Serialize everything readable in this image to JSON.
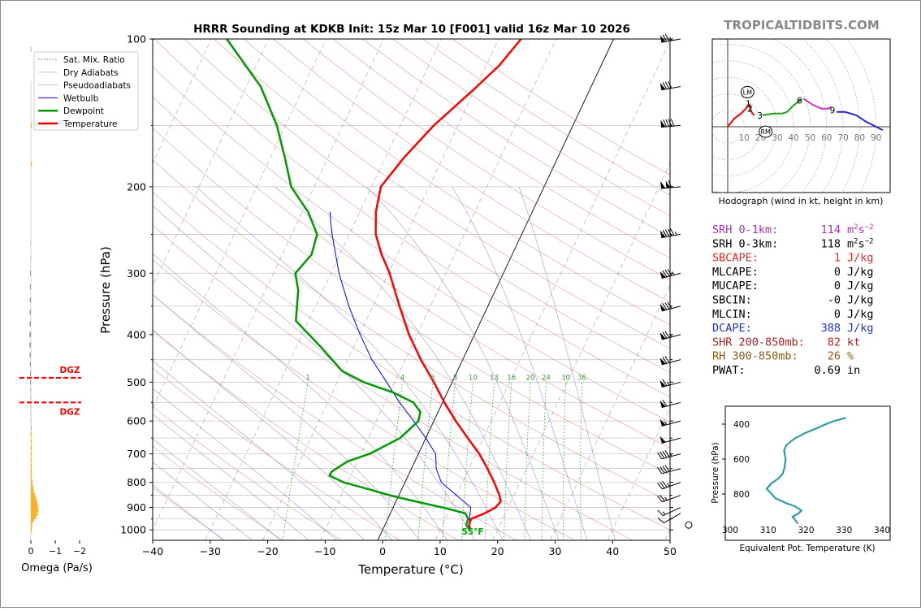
{
  "chart_data": [
    {
      "type": "skew-t",
      "title": "HRRR Sounding at KDKB Init: 15z Mar 10 [F001] valid 16z Mar 10 2026",
      "xlabel": "Temperature (°C)",
      "ylabel": "Pressure (hPa)",
      "xlim": [
        -40,
        50
      ],
      "ylim": [
        1050,
        100
      ],
      "log_y": true,
      "x_ticks": [
        "−40",
        "−30",
        "−20",
        "−10",
        "0",
        "10",
        "20",
        "30",
        "40",
        "50"
      ],
      "y_ticks": [
        "100",
        "200",
        "300",
        "400",
        "500",
        "600",
        "700",
        "800",
        "900",
        "1000"
      ],
      "legend": [
        "Sat. Mix. Ratio",
        "Dry Adiabats",
        "Pseudoadiabats",
        "Wetbulb",
        "Dewpoint",
        "Temperature"
      ],
      "legend_position": "top-left",
      "colors": {
        "temperature": "#ff0000",
        "dewpoint": "#009900",
        "wetbulb": "#0000ff",
        "dry": "#e08080",
        "moist": "#8080e0",
        "mix": "#2e9b2e"
      },
      "mixing_ratio_labels": [
        "1",
        "4",
        "6",
        "8",
        "10",
        "13",
        "16",
        "20",
        "24",
        "30",
        "36"
      ],
      "surface_label": "55°F",
      "temperature": [
        [
          1000,
          15.2
        ],
        [
          975,
          14.6
        ],
        [
          950,
          14.5
        ],
        [
          925,
          16.4
        ],
        [
          900,
          17.8
        ],
        [
          875,
          18.2
        ],
        [
          850,
          17.5
        ],
        [
          800,
          15.5
        ],
        [
          750,
          13.2
        ],
        [
          700,
          10.6
        ],
        [
          650,
          7.3
        ],
        [
          600,
          3.8
        ],
        [
          550,
          0.3
        ],
        [
          500,
          -3.2
        ],
        [
          450,
          -7.3
        ],
        [
          400,
          -11.4
        ],
        [
          350,
          -15.4
        ],
        [
          300,
          -19.8
        ],
        [
          275,
          -22.7
        ],
        [
          250,
          -25.4
        ],
        [
          225,
          -27.2
        ],
        [
          200,
          -28.4
        ],
        [
          175,
          -26.8
        ],
        [
          150,
          -24.2
        ],
        [
          125,
          -19.9
        ],
        [
          113,
          -17.7
        ],
        [
          100,
          -16.1
        ]
      ],
      "dewpoint": [
        [
          1000,
          15.1
        ],
        [
          975,
          14.1
        ],
        [
          950,
          14.0
        ],
        [
          925,
          13.0
        ],
        [
          900,
          8.6
        ],
        [
          875,
          3.4
        ],
        [
          850,
          -1.6
        ],
        [
          825,
          -6.0
        ],
        [
          800,
          -10.7
        ],
        [
          775,
          -13.7
        ],
        [
          760,
          -13.6
        ],
        [
          725,
          -11.7
        ],
        [
          700,
          -8.5
        ],
        [
          650,
          -4.5
        ],
        [
          600,
          -2.7
        ],
        [
          575,
          -3.1
        ],
        [
          550,
          -5.1
        ],
        [
          525,
          -9.4
        ],
        [
          500,
          -15.4
        ],
        [
          475,
          -20.0
        ],
        [
          425,
          -25.6
        ],
        [
          375,
          -32.2
        ],
        [
          325,
          -34.3
        ],
        [
          300,
          -36.2
        ],
        [
          275,
          -34.9
        ],
        [
          250,
          -35.6
        ],
        [
          225,
          -39.0
        ],
        [
          200,
          -44.0
        ],
        [
          175,
          -47.4
        ],
        [
          150,
          -51.5
        ],
        [
          125,
          -57.5
        ],
        [
          100,
          -67.3
        ]
      ],
      "wetbulb": [
        [
          1000,
          15.1
        ],
        [
          950,
          14.2
        ],
        [
          900,
          13.5
        ],
        [
          850,
          10.0
        ],
        [
          800,
          6.3
        ],
        [
          750,
          4.3
        ],
        [
          700,
          3.0
        ],
        [
          650,
          0.0
        ],
        [
          600,
          -3.5
        ],
        [
          550,
          -7.5
        ],
        [
          500,
          -11.4
        ],
        [
          450,
          -15.8
        ],
        [
          400,
          -19.9
        ],
        [
          350,
          -24.2
        ],
        [
          300,
          -28.6
        ],
        [
          250,
          -33.0
        ],
        [
          225,
          -35.2
        ]
      ],
      "wind_kt": [
        [
          1000,
          0,
          0
        ],
        [
          925,
          240,
          10
        ],
        [
          900,
          245,
          15
        ],
        [
          850,
          250,
          25
        ],
        [
          800,
          250,
          35
        ],
        [
          750,
          255,
          40
        ],
        [
          700,
          255,
          45
        ],
        [
          650,
          255,
          50
        ],
        [
          600,
          255,
          55
        ],
        [
          550,
          255,
          60
        ],
        [
          500,
          255,
          65
        ],
        [
          450,
          255,
          70
        ],
        [
          400,
          255,
          75
        ],
        [
          350,
          255,
          80
        ],
        [
          300,
          255,
          85
        ],
        [
          250,
          260,
          95
        ],
        [
          200,
          265,
          110
        ],
        [
          150,
          265,
          90
        ],
        [
          125,
          260,
          80
        ],
        [
          100,
          260,
          75
        ]
      ]
    },
    {
      "type": "omega-profile",
      "xlabel": "Omega (Pa/s)",
      "x_ticks": [
        "0",
        "−1",
        "−2"
      ],
      "dgz_label": "DGZ",
      "dgz_hpa": [
        550,
        490
      ],
      "omega": [
        [
          1000,
          -0.05
        ],
        [
          980,
          -0.1
        ],
        [
          960,
          -0.15
        ],
        [
          950,
          -0.3
        ],
        [
          940,
          -0.45
        ],
        [
          925,
          -0.6
        ],
        [
          910,
          -0.65
        ],
        [
          895,
          -0.6
        ],
        [
          880,
          -0.55
        ],
        [
          865,
          -0.45
        ],
        [
          850,
          -0.35
        ],
        [
          835,
          -0.25
        ],
        [
          820,
          -0.2
        ],
        [
          800,
          -0.15
        ],
        [
          780,
          -0.1
        ],
        [
          760,
          -0.07
        ],
        [
          740,
          -0.05
        ],
        [
          720,
          -0.04
        ],
        [
          700,
          -0.03
        ],
        [
          680,
          -0.03
        ],
        [
          660,
          -0.02
        ],
        [
          640,
          -0.01
        ],
        [
          620,
          0
        ],
        [
          600,
          0.02
        ],
        [
          580,
          0.04
        ],
        [
          560,
          0.05
        ],
        [
          540,
          0.05
        ],
        [
          520,
          0.06
        ],
        [
          500,
          0.07
        ],
        [
          480,
          0.07
        ],
        [
          460,
          0.08
        ],
        [
          440,
          0.1
        ],
        [
          420,
          0.12
        ],
        [
          400,
          0.12
        ],
        [
          380,
          0.1
        ],
        [
          360,
          0.1
        ],
        [
          340,
          0.09
        ],
        [
          320,
          0.08
        ],
        [
          300,
          0.07
        ],
        [
          280,
          0.05
        ],
        [
          260,
          0.05
        ],
        [
          180,
          -0.02
        ],
        [
          150,
          -0.02
        ],
        [
          105,
          0.02
        ]
      ]
    },
    {
      "type": "hodograph",
      "caption": "Hodograph (wind in kt, height in km)",
      "rings_kt": [
        "10",
        "20",
        "30",
        "40",
        "50",
        "60",
        "70",
        "80",
        "90"
      ],
      "markers": [
        "LM",
        "RM"
      ],
      "height_labels": [
        "1",
        "2",
        "3",
        "6",
        "9"
      ],
      "segments": [
        {
          "name": "0-1 km",
          "color": "#ff0000",
          "points": [
            [
              0,
              0
            ],
            [
              4,
              5
            ],
            [
              8,
              8
            ],
            [
              11,
              11
            ],
            [
              13,
              14
            ]
          ]
        },
        {
          "name": "1-3 km",
          "color": "#ff0000",
          "points": [
            [
              13,
              14
            ],
            [
              14,
              10
            ],
            [
              15,
              8
            ],
            [
              16,
              7
            ]
          ]
        },
        {
          "name": "3-6 km",
          "color": "#1a9e1a",
          "points": [
            [
              21,
              7
            ],
            [
              28,
              8
            ],
            [
              33,
              8
            ],
            [
              36,
              9
            ],
            [
              40,
              13
            ],
            [
              44,
              16
            ],
            [
              45,
              17
            ]
          ]
        },
        {
          "name": "6-9 km",
          "color": "#cc33cc",
          "points": [
            [
              46,
              17
            ],
            [
              52,
              13
            ],
            [
              57,
              11
            ],
            [
              61,
              11
            ],
            [
              63,
              12
            ]
          ]
        },
        {
          "name": "9-12 km",
          "color": "#2222dd",
          "points": [
            [
              66,
              9
            ],
            [
              68,
              9
            ],
            [
              71,
              9
            ],
            [
              78,
              7
            ],
            [
              84,
              3
            ],
            [
              90,
              0
            ],
            [
              94,
              -2
            ]
          ]
        }
      ],
      "lm": [
        12,
        21
      ],
      "rm": [
        23,
        -3
      ]
    },
    {
      "type": "line",
      "xlabel": "Equivalent Pot. Temperature (K)",
      "ylabel": "Pressure (hPa)",
      "xlim": [
        300,
        340
      ],
      "ylim": [
        1000,
        360
      ],
      "x_ticks": [
        "300",
        "310",
        "320",
        "330",
        "340"
      ],
      "y_ticks": [
        "400",
        "600",
        "800",
        "1000"
      ],
      "color": "#3399aa",
      "points": [
        [
          317.8,
          970
        ],
        [
          317.0,
          945
        ],
        [
          316.4,
          930
        ],
        [
          317.8,
          915
        ],
        [
          318.8,
          895
        ],
        [
          317.0,
          870
        ],
        [
          314.5,
          850
        ],
        [
          312.0,
          825
        ],
        [
          309.6,
          770
        ],
        [
          310.8,
          740
        ],
        [
          312.8,
          710
        ],
        [
          313.8,
          685
        ],
        [
          314.3,
          650
        ],
        [
          314.6,
          600
        ],
        [
          314.2,
          550
        ],
        [
          314.8,
          520
        ],
        [
          316.8,
          485
        ],
        [
          319.8,
          450
        ],
        [
          323.2,
          420
        ],
        [
          325.8,
          395
        ],
        [
          327.7,
          380
        ],
        [
          330.5,
          364
        ]
      ]
    }
  ],
  "brand": "TROPICALTIDBITS.COM",
  "stats": [
    {
      "label": "SRH 0-1km:",
      "value": "114",
      "unit": "m",
      "color": "#aa33aa"
    },
    {
      "label": "SRH 0-3km:",
      "value": "118",
      "unit": "m",
      "color": "#000000"
    },
    {
      "label": "SBCAPE:",
      "value": "1",
      "unit": "J/kg",
      "color": "#ee2222"
    },
    {
      "label": "MLCAPE:",
      "value": "0",
      "unit": "J/kg",
      "color": "#000000"
    },
    {
      "label": "MUCAPE:",
      "value": "0",
      "unit": "J/kg",
      "color": "#000000"
    },
    {
      "label": "SBCIN:",
      "value": "-0",
      "unit": "J/kg",
      "color": "#000000"
    },
    {
      "label": "MLCIN:",
      "value": "0",
      "unit": "J/kg",
      "color": "#000000"
    },
    {
      "label": "DCAPE:",
      "value": "388",
      "unit": "J/kg",
      "color": "#2233cc"
    },
    {
      "label": "SHR 200-850mb:",
      "value": "82",
      "unit": "kt",
      "color": "#aa2222"
    },
    {
      "label": "RH 300-850mb:",
      "value": "26",
      "unit": "%",
      "color": "#8a5a1a"
    },
    {
      "label": "PWAT:",
      "value": "0.69",
      "unit": "in",
      "color": "#000000"
    }
  ]
}
